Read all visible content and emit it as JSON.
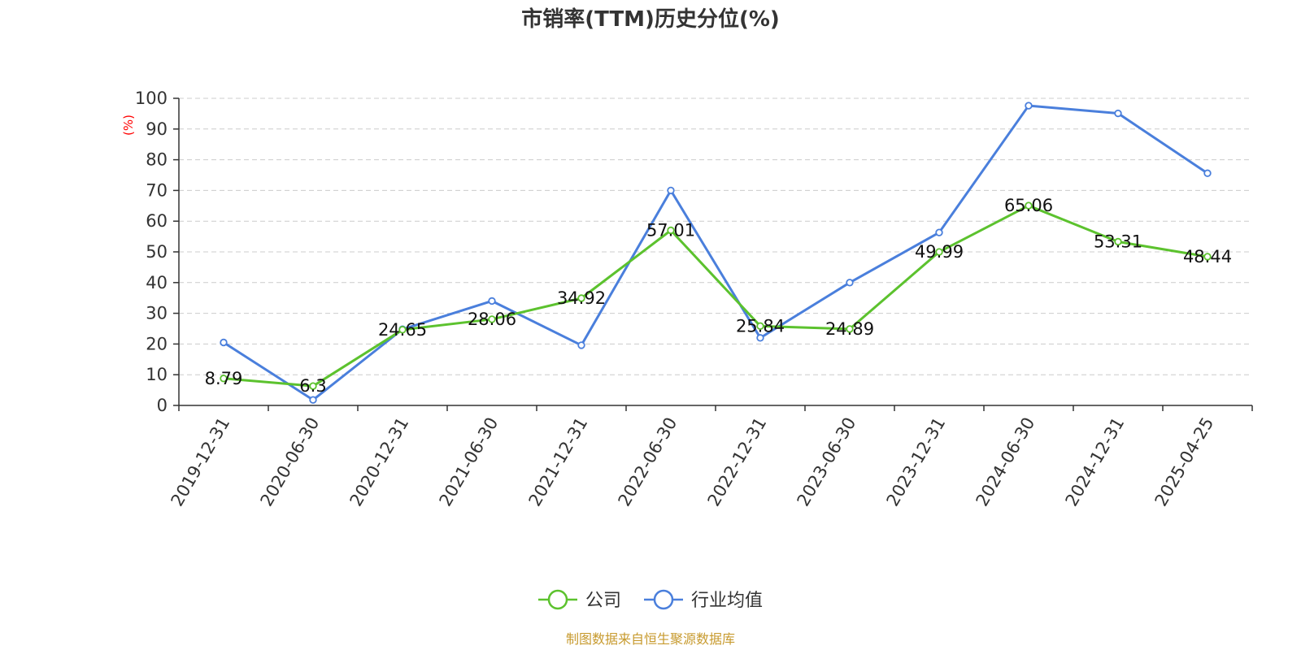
{
  "chart_data": {
    "type": "line",
    "title": "市销率(TTM)历史分位(%)",
    "ylabel": "(%)",
    "xlabel": "",
    "ylim": [
      0,
      100
    ],
    "yticks": [
      0,
      10,
      20,
      30,
      40,
      50,
      60,
      70,
      80,
      90,
      100
    ],
    "categories": [
      "2019-12-31",
      "2020-06-30",
      "2020-12-31",
      "2021-06-30",
      "2021-12-31",
      "2022-06-30",
      "2022-12-31",
      "2023-06-30",
      "2023-12-31",
      "2024-06-30",
      "2024-12-31",
      "2025-04-25"
    ],
    "grid": "horizontal dashed",
    "legend_position": "bottom",
    "series": [
      {
        "name": "公司",
        "color": "#5cc22e",
        "values": [
          8.79,
          6.3,
          24.65,
          28.06,
          34.92,
          57.01,
          25.84,
          24.89,
          49.99,
          65.06,
          53.31,
          48.44
        ],
        "labels": [
          "8.79",
          "6.3",
          "24.65",
          "28.06",
          "34.92",
          "57.01",
          "25.84",
          "24.89",
          "49.99",
          "65.06",
          "53.31",
          "48.44"
        ]
      },
      {
        "name": "行业均值",
        "color": "#4a7fdc",
        "values": [
          20.5,
          1.8,
          24.8,
          34.0,
          19.6,
          70.0,
          22.0,
          40.0,
          56.3,
          97.6,
          95.1,
          75.6
        ]
      }
    ],
    "source": "制图数据来自恒生聚源数据库"
  }
}
